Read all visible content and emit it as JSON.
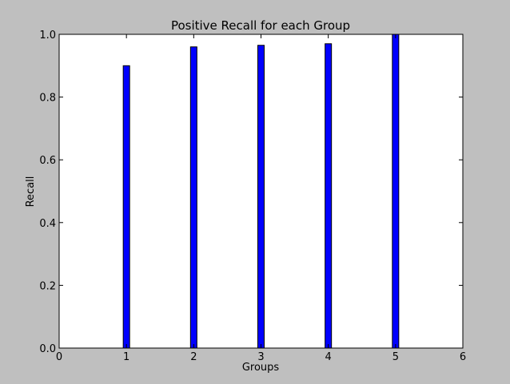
{
  "chart_data": {
    "type": "bar",
    "title": "Positive Recall for each Group",
    "xlabel": "Groups",
    "ylabel": "Recall",
    "x": [
      1,
      2,
      3,
      4,
      5
    ],
    "values": [
      0.9,
      0.96,
      0.965,
      0.97,
      1.0
    ],
    "xlim": [
      0,
      6
    ],
    "ylim": [
      0.0,
      1.0
    ],
    "xticks": [
      "0",
      "1",
      "2",
      "3",
      "4",
      "5",
      "6"
    ],
    "yticks": [
      "0.0",
      "0.2",
      "0.4",
      "0.6",
      "0.8",
      "1.0"
    ],
    "grid": false,
    "bar_color": "#0000ff",
    "bar_edge_color": "#000000",
    "plot_background": "#ffffff",
    "figure_background": "#bfbfbf"
  }
}
